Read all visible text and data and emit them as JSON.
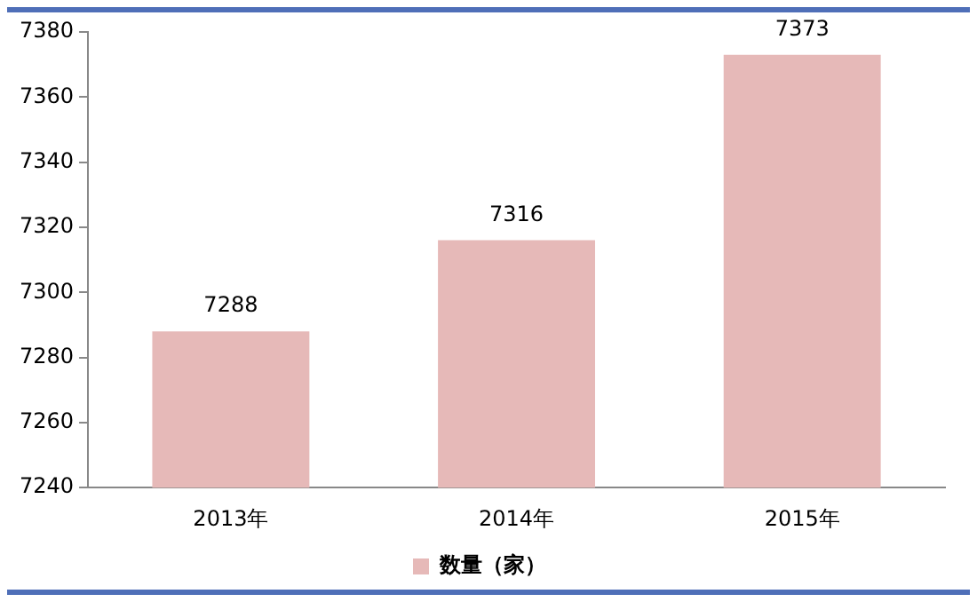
{
  "chart_data": {
    "type": "bar",
    "categories": [
      "2013年",
      "2014年",
      "2015年"
    ],
    "series": [
      {
        "name": "数量（家）",
        "color": "#e6b9b8",
        "values": [
          7288,
          7316,
          7373
        ]
      }
    ],
    "ylim": [
      7240,
      7380
    ],
    "yticks": [
      7240,
      7260,
      7280,
      7300,
      7320,
      7340,
      7360,
      7380
    ],
    "data_labels": true,
    "legend": "bottom"
  }
}
